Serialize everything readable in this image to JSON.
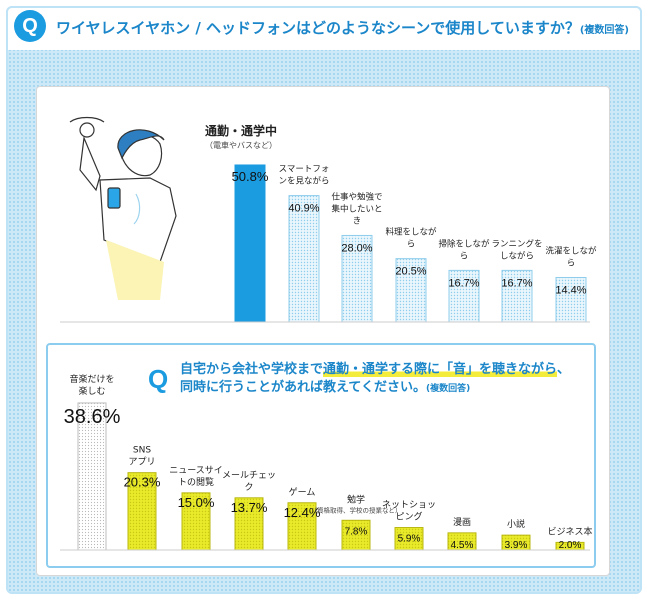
{
  "question": {
    "badge": "Q",
    "text": "ワイヤレスイヤホン / ヘッドフォンはどのようなシーンで使用していますか？",
    "note": "(複数回答)"
  },
  "question2": {
    "badge": "Q",
    "line1_pre": "自宅から会社や学校まで",
    "line1_hl1": "通勤・通学する際に",
    "line1_hl2": "「音」を聴きながら",
    "line1_post": "、",
    "line2": "同時に行うことがあれば教えてください。",
    "note": "(複数回答)"
  },
  "colors": {
    "accent": "#1b9be0",
    "yellow": "#e2e41e",
    "pale": "#eaf6fc",
    "header_text": "#1b86c9"
  },
  "illustration": "commuter-holding-strap-with-smartphone",
  "chart_data": [
    {
      "type": "bar",
      "categories": [
        "通勤・通学中",
        "スマートフォンを見ながら",
        "仕事や勉強で集中したいとき",
        "料理をしながら",
        "掃除をしながら",
        "ランニングをしながら",
        "洗濯をしながら"
      ],
      "notes": [
        "（電車やバスなど）",
        "",
        "",
        "",
        "",
        "",
        ""
      ],
      "values": [
        50.8,
        40.9,
        28.0,
        20.5,
        16.7,
        16.7,
        14.4
      ],
      "value_labels": [
        "50.8%",
        "40.9%",
        "28.0%",
        "20.5%",
        "16.7%",
        "16.7%",
        "14.4%"
      ],
      "unit": "%",
      "ylim": [
        0,
        55
      ]
    },
    {
      "type": "bar",
      "categories": [
        "音楽だけを楽しむ",
        "SNS アプリ",
        "ニュースサイトの閲覧",
        "メールチェック",
        "ゲーム",
        "勉学",
        "ネットショッピング",
        "漫画",
        "小説",
        "ビジネス本"
      ],
      "notes": [
        "",
        "",
        "",
        "",
        "",
        "（資格取得、学校の授業など）",
        "",
        "",
        "",
        ""
      ],
      "values": [
        38.6,
        20.3,
        15.0,
        13.7,
        12.4,
        7.8,
        5.9,
        4.5,
        3.9,
        2.0
      ],
      "value_labels": [
        "38.6%",
        "20.3%",
        "15.0%",
        "13.7%",
        "12.4%",
        "7.8%",
        "5.9%",
        "4.5%",
        "3.9%",
        "2.0%"
      ],
      "unit": "%",
      "ylim": [
        0,
        42
      ]
    }
  ]
}
